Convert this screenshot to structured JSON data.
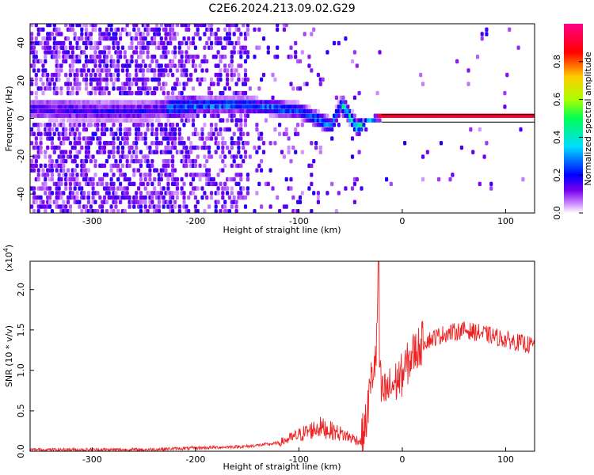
{
  "figure_title": "C2E6.2024.213.09.02.G29",
  "chart_data": [
    {
      "type": "heatmap",
      "xlabel": "Height of straight line (km)",
      "ylabel": "Frequency (Hz)",
      "xlim": [
        -360,
        128
      ],
      "ylim": [
        -50,
        50
      ],
      "xticks": [
        -300,
        -200,
        -100,
        0,
        100
      ],
      "yticks": [
        -40,
        -20,
        0,
        20,
        40
      ],
      "colorbar": {
        "label": "Normalized spectral amplitude",
        "range": [
          0,
          1
        ],
        "ticks": [
          "0.0",
          "0.2",
          "0.4",
          "0.6",
          "0.8"
        ],
        "colormap": [
          "#ffffff",
          "#cc88ff",
          "#7700ee",
          "#0000ff",
          "#00ddff",
          "#00ff55",
          "#aaff00",
          "#ffcc00",
          "#ff0000",
          "#ff0088"
        ]
      },
      "centerline": [
        {
          "x": -350,
          "y": 4
        },
        {
          "x": -300,
          "y": 3
        },
        {
          "x": -250,
          "y": 3
        },
        {
          "x": -200,
          "y": 6
        },
        {
          "x": -150,
          "y": 6
        },
        {
          "x": -100,
          "y": 3
        },
        {
          "x": -70,
          "y": -5
        },
        {
          "x": -60,
          "y": 7
        },
        {
          "x": -45,
          "y": -6
        },
        {
          "x": -35,
          "y": -2
        },
        {
          "x": -20,
          "y": 0
        },
        {
          "x": 0,
          "y": 1
        },
        {
          "x": 125,
          "y": 0
        }
      ]
    },
    {
      "type": "line",
      "xlabel": "Height of straight line (km)",
      "ylabel": "SNR (10 * v/v)",
      "y_multiplier": "(x10",
      "y_multiplier_exp": "4",
      "y_multiplier_close": ")",
      "xlim": [
        -360,
        128
      ],
      "ylim": [
        0,
        2.35
      ],
      "xticks": [
        -300,
        -200,
        -100,
        0,
        100
      ],
      "yticks": [
        "0.0",
        "0.5",
        "1.0",
        "1.5",
        "2.0"
      ],
      "color": "#ee2222",
      "series": [
        {
          "x": [
            -360,
            -300,
            -250,
            -200,
            -150,
            -120,
            -100,
            -80,
            -60,
            -40,
            -35,
            -30,
            -28,
            -25,
            -23,
            -22,
            -20,
            -10,
            0,
            10,
            20,
            30,
            40,
            60,
            80,
            100,
            128
          ],
          "y": [
            0.02,
            0.02,
            0.02,
            0.04,
            0.06,
            0.1,
            0.2,
            0.3,
            0.22,
            0.12,
            0.35,
            0.9,
            1.0,
            1.2,
            2.3,
            1.0,
            0.7,
            0.8,
            0.95,
            1.2,
            1.35,
            1.4,
            1.45,
            1.5,
            1.45,
            1.38,
            1.3
          ]
        }
      ]
    }
  ]
}
